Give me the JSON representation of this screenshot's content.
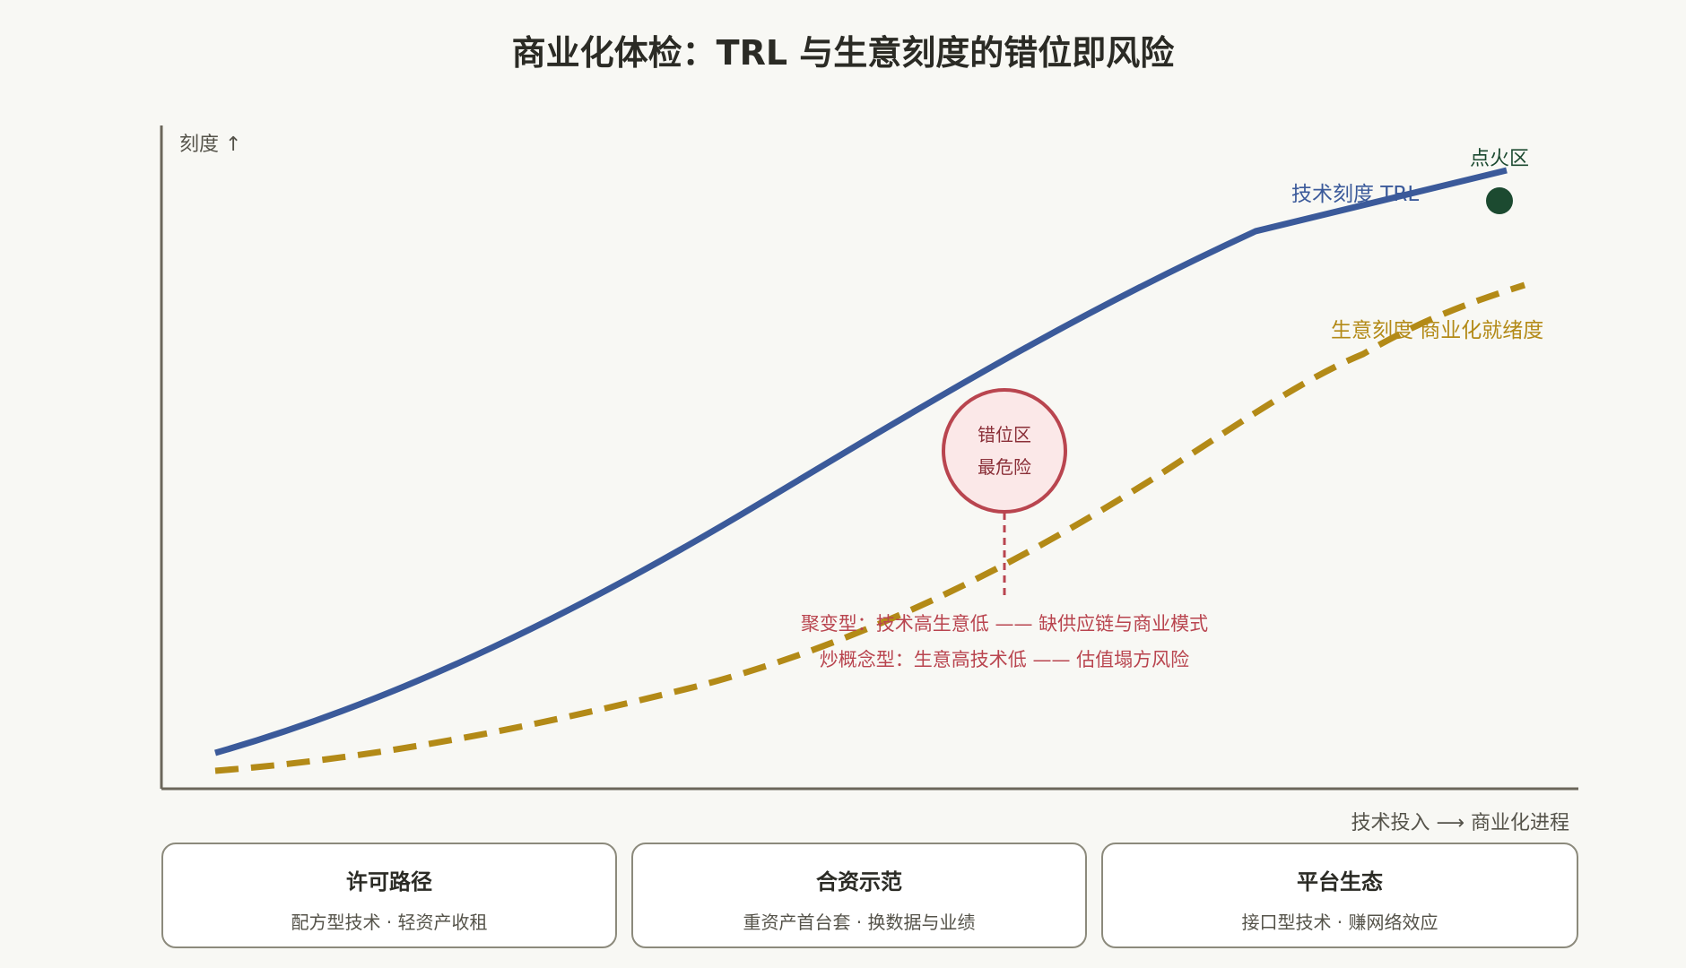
{
  "title": "商业化体检：TRL 与生意刻度的错位即风险",
  "axes": {
    "y_label": "刻度 ↑",
    "x_label": "技术投入 ⟶ 商业化进程"
  },
  "series": {
    "trl": {
      "label": "技术刻度 TRL",
      "color": "#3b5a9a"
    },
    "biz": {
      "label": "生意刻度 商业化就绪度",
      "color": "#b38a17"
    }
  },
  "ignition": {
    "label": "点火区",
    "color": "#1c4a30"
  },
  "mismatch": {
    "line1": "错位区",
    "line2": "最危险",
    "color": "#b9454f"
  },
  "notes": [
    "聚变型：技术高生意低 —— 缺供应链与商业模式",
    "炒概念型：生意高技术低 —— 估值塌方风险"
  ],
  "cards": [
    {
      "title": "许可路径",
      "desc": "配方型技术 · 轻资产收租"
    },
    {
      "title": "合资示范",
      "desc": "重资产首台套 · 换数据与业绩"
    },
    {
      "title": "平台生态",
      "desc": "接口型技术 · 赚网络效应"
    }
  ]
}
